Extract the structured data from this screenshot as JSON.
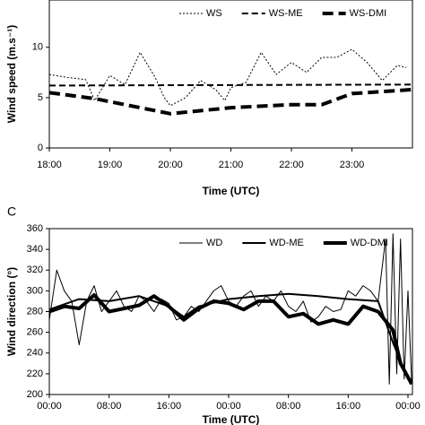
{
  "chart_data": [
    {
      "type": "line",
      "y_label": "Wind speed (m.s⁻¹)",
      "x_label": "Time (UTC)",
      "xlim": [
        18,
        24
      ],
      "ylim": [
        0,
        14.7
      ],
      "xticks": [
        {
          "value": 18,
          "label": "18:00"
        },
        {
          "value": 19,
          "label": "19:00"
        },
        {
          "value": 20,
          "label": "20:00"
        },
        {
          "value": 21,
          "label": "21:00"
        },
        {
          "value": 22,
          "label": "22:00"
        },
        {
          "value": 23,
          "label": "23:00"
        }
      ],
      "yticks": [
        0,
        5,
        10
      ],
      "legend": "top",
      "series": [
        {
          "name": "WS",
          "color": "#000000",
          "style": "dotted",
          "width": 1,
          "x": [
            18,
            18.3,
            18.6,
            18.75,
            19,
            19.25,
            19.5,
            19.75,
            19.9,
            20,
            20.25,
            20.5,
            20.75,
            20.9,
            21,
            21.25,
            21.5,
            21.75,
            22,
            22.25,
            22.5,
            22.75,
            23,
            23.25,
            23.5,
            23.75,
            23.9
          ],
          "values": [
            7.3,
            7.0,
            6.8,
            4.7,
            7.2,
            6.3,
            9.5,
            7.0,
            5.0,
            4.2,
            5.0,
            6.7,
            5.8,
            4.7,
            6.0,
            6.5,
            9.5,
            7.3,
            8.5,
            7.5,
            9.0,
            9.0,
            9.8,
            8.5,
            6.7,
            8.2,
            8.0
          ]
        },
        {
          "name": "WS-ME",
          "color": "#000000",
          "style": "dashed",
          "width": 2,
          "x": [
            18,
            24
          ],
          "values": [
            6.2,
            6.3
          ]
        },
        {
          "name": "WS-DMI",
          "color": "#000000",
          "style": "heavy-dashed",
          "width": 4,
          "x": [
            18,
            18.75,
            20,
            21,
            22,
            22.5,
            23,
            24
          ],
          "values": [
            5.5,
            4.9,
            3.4,
            4.0,
            4.3,
            4.3,
            5.4,
            5.8
          ]
        }
      ]
    },
    {
      "type": "line",
      "label": "C",
      "y_label": "Wind direction (°)",
      "x_label": "Time (UTC)",
      "xlim": [
        0,
        48.6
      ],
      "ylim": [
        200,
        360
      ],
      "xticks": [
        {
          "value": 0,
          "label": "00:00"
        },
        {
          "value": 8,
          "label": "08:00"
        },
        {
          "value": 16,
          "label": "16:00"
        },
        {
          "value": 24,
          "label": "00:00"
        },
        {
          "value": 32,
          "label": "08:00"
        },
        {
          "value": 40,
          "label": "16:00"
        },
        {
          "value": 48,
          "label": "00:00"
        }
      ],
      "yticks": [
        200,
        220,
        240,
        260,
        280,
        300,
        320,
        340,
        360
      ],
      "legend": "top",
      "series": [
        {
          "name": "WD",
          "color": "#000000",
          "style": "solid",
          "width": 1,
          "x": [
            0,
            1,
            2,
            3,
            4,
            5,
            6,
            7,
            8,
            9,
            10,
            11,
            12,
            13,
            14,
            15,
            16,
            17,
            18,
            19,
            20,
            21,
            22,
            23,
            24,
            25,
            26,
            27,
            28,
            29,
            30,
            31,
            32,
            33,
            34,
            35,
            36,
            37,
            38,
            39,
            40,
            41,
            42,
            43,
            44,
            45,
            45.5,
            46,
            46.5,
            47,
            47.5,
            48,
            48.5
          ],
          "values": [
            272,
            320,
            300,
            290,
            248,
            290,
            305,
            280,
            290,
            300,
            285,
            280,
            295,
            290,
            280,
            292,
            288,
            272,
            275,
            285,
            280,
            290,
            300,
            305,
            290,
            285,
            295,
            300,
            285,
            295,
            290,
            300,
            285,
            280,
            290,
            270,
            275,
            285,
            280,
            282,
            300,
            295,
            305,
            300,
            290,
            350,
            210,
            355,
            220,
            350,
            215,
            300,
            210
          ]
        },
        {
          "name": "WD-ME",
          "color": "#000000",
          "style": "solid",
          "width": 2,
          "x": [
            0,
            4,
            8,
            12,
            16,
            18,
            20,
            24,
            28,
            32,
            36,
            40,
            44,
            46,
            48
          ],
          "values": [
            282,
            292,
            290,
            295,
            285,
            275,
            285,
            292,
            295,
            297,
            295,
            292,
            290,
            250,
            215
          ]
        },
        {
          "name": "WD-DMI",
          "color": "#000000",
          "style": "solid",
          "width": 4,
          "x": [
            0,
            2,
            4,
            6,
            8,
            12,
            14,
            16,
            18,
            20,
            22,
            24,
            26,
            28,
            30,
            32,
            34,
            36,
            38,
            40,
            42,
            44,
            46,
            47,
            48.5
          ],
          "values": [
            280,
            285,
            283,
            296,
            280,
            286,
            295,
            285,
            272,
            283,
            290,
            288,
            282,
            290,
            290,
            275,
            278,
            268,
            272,
            268,
            285,
            280,
            262,
            230,
            210
          ]
        }
      ]
    }
  ]
}
